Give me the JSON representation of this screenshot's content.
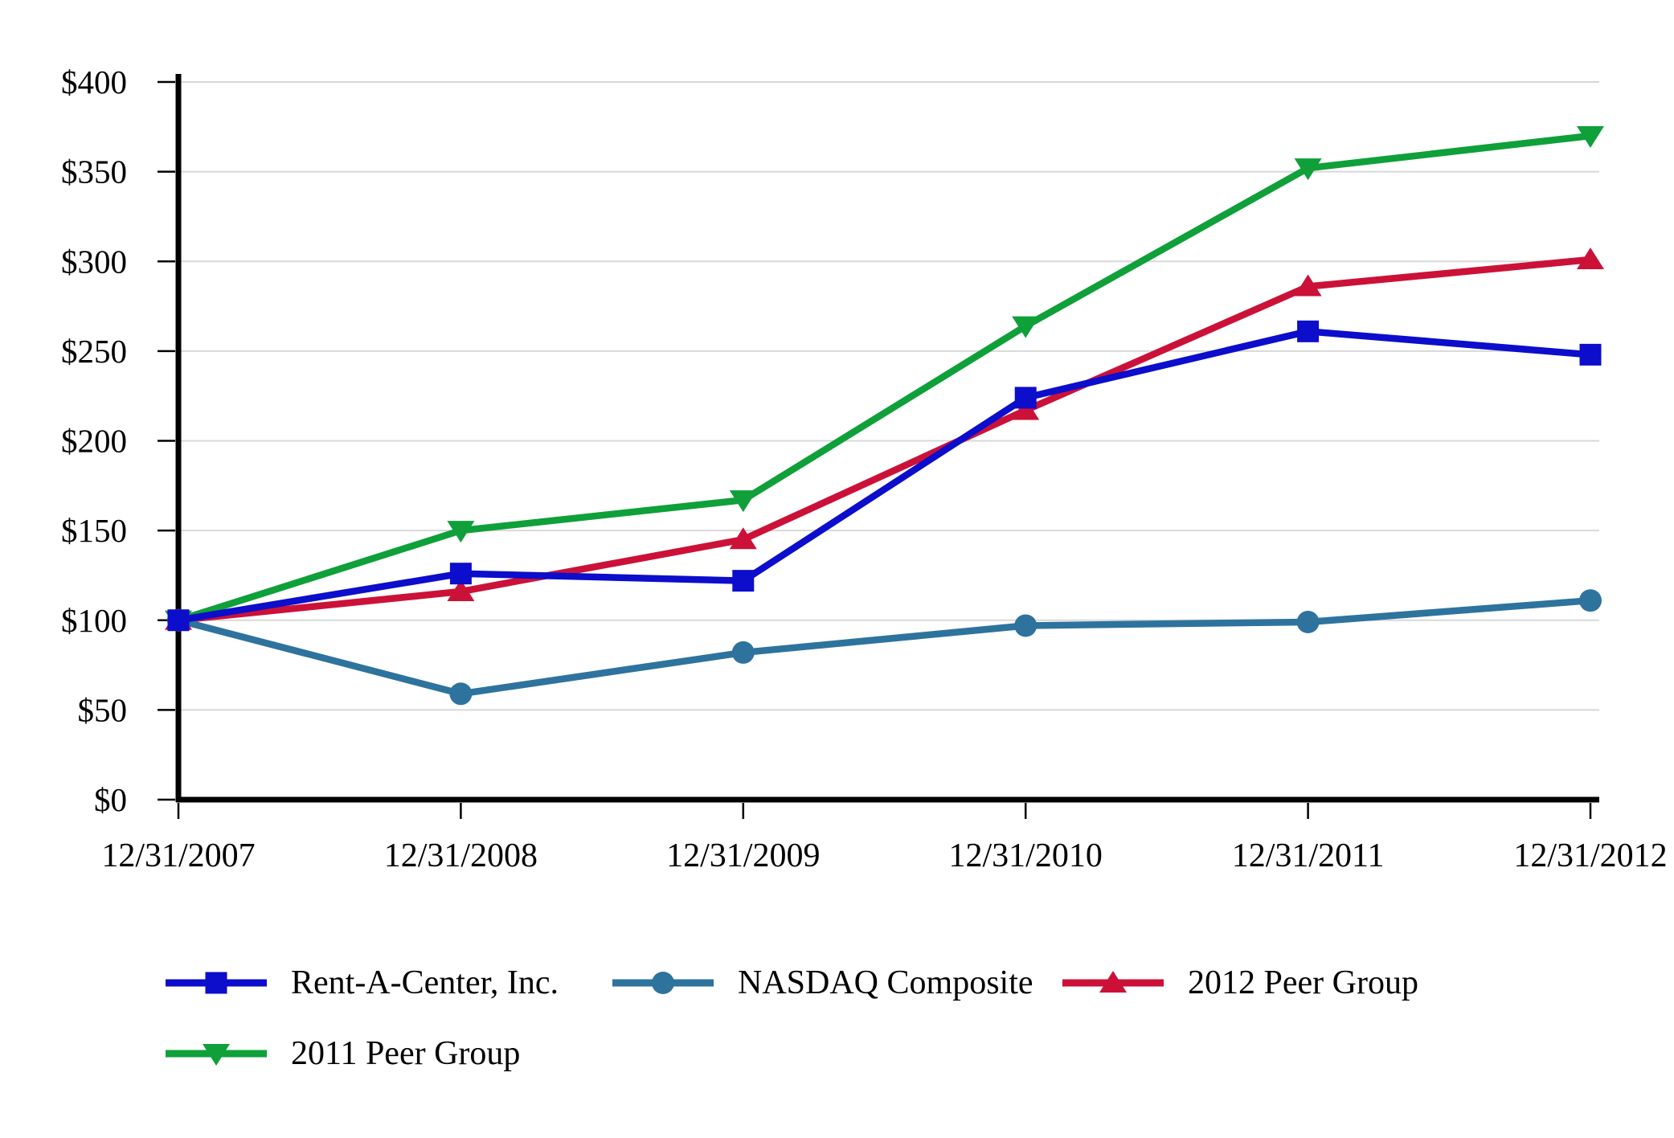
{
  "chart_data": {
    "type": "line",
    "title": "",
    "xlabel": "",
    "ylabel": "",
    "x_labels": [
      "12/31/2007",
      "12/31/2008",
      "12/31/2009",
      "12/31/2010",
      "12/31/2011",
      "12/31/2012"
    ],
    "y_ticks": [
      "$0",
      "$50",
      "$100",
      "$150",
      "$200",
      "$250",
      "$300",
      "$350",
      "$400"
    ],
    "ylim": [
      0,
      400
    ],
    "y_tick_step": 50,
    "grid": "horizontal",
    "legend_position": "bottom-left",
    "axis_color": "#000000",
    "grid_color": "#D8D8D8",
    "series": [
      {
        "name": "Rent-A-Center, Inc.",
        "marker": "square",
        "color": "#0D0DCC",
        "values": [
          100,
          126,
          122,
          224,
          261,
          248
        ]
      },
      {
        "name": "NASDAQ Composite",
        "marker": "circle",
        "color": "#2E739E",
        "values": [
          100,
          59,
          82,
          97,
          99,
          111
        ]
      },
      {
        "name": "2012 Peer Group",
        "marker": "triangle-up",
        "color": "#CC1139",
        "values": [
          100,
          116,
          145,
          217,
          286,
          301
        ]
      },
      {
        "name": "2011 Peer Group",
        "marker": "triangle-down",
        "color": "#0FA03A",
        "values": [
          100,
          150,
          167,
          264,
          352,
          370
        ]
      }
    ]
  }
}
